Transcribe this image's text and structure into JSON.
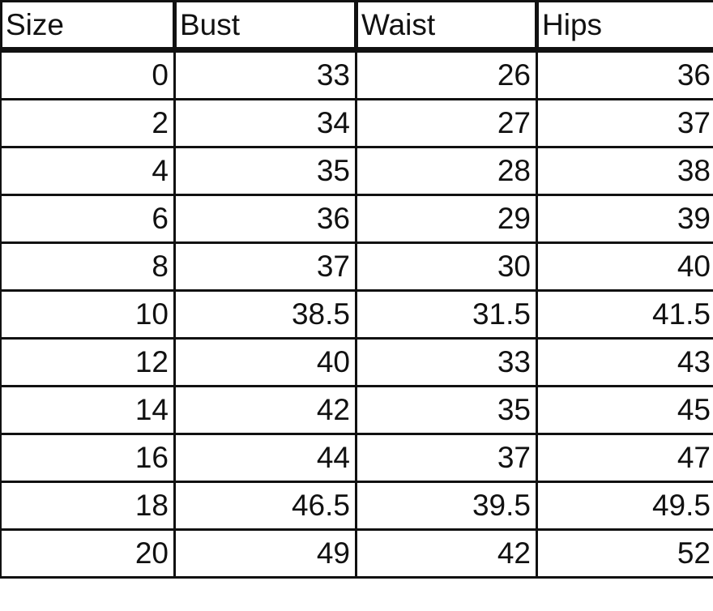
{
  "headers": [
    "Size",
    "Bust",
    "Waist",
    "Hips"
  ],
  "rows": [
    [
      "0",
      "33",
      "26",
      "36"
    ],
    [
      "2",
      "34",
      "27",
      "37"
    ],
    [
      "4",
      "35",
      "28",
      "38"
    ],
    [
      "6",
      "36",
      "29",
      "39"
    ],
    [
      "8",
      "37",
      "30",
      "40"
    ],
    [
      "10",
      "38.5",
      "31.5",
      "41.5"
    ],
    [
      "12",
      "40",
      "33",
      "43"
    ],
    [
      "14",
      "42",
      "35",
      "45"
    ],
    [
      "16",
      "44",
      "37",
      "47"
    ],
    [
      "18",
      "46.5",
      "39.5",
      "49.5"
    ],
    [
      "20",
      "49",
      "42",
      "52"
    ]
  ]
}
